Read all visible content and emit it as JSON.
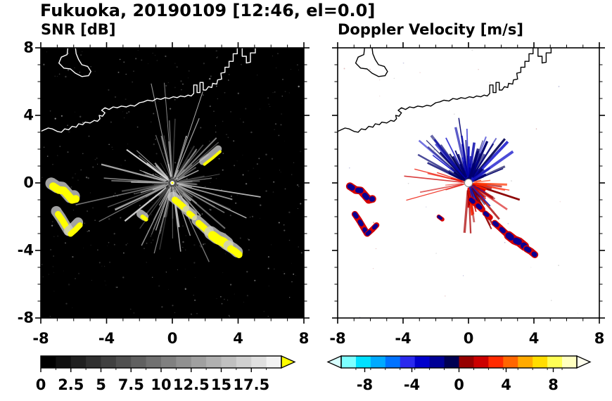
{
  "chart_data": {
    "type": "heatmap",
    "title": "Fukuoka, 20190109 [12:46, el=0.0]",
    "xlim": [
      -8,
      8
    ],
    "ylim": [
      -8,
      8
    ],
    "x_tick_labels": [
      "-8",
      "-4",
      "0",
      "4",
      "8"
    ],
    "y_tick_labels": [
      "8",
      "4",
      "0",
      "-4",
      "-8"
    ],
    "radar_center": [
      0,
      0
    ],
    "panels": [
      {
        "id": "snr",
        "title": "SNR [dB]",
        "bg": "#000000",
        "coast": "#ffffff",
        "colorbar": {
          "units": "dB",
          "range": [
            0,
            20
          ],
          "tick_labels": [
            "0",
            "2.5",
            "5",
            "7.5",
            "10",
            "12.5",
            "15",
            "17.5"
          ],
          "tick_values": [
            0,
            2.5,
            5,
            7.5,
            10,
            12.5,
            15,
            17.5
          ],
          "segment_colors": [
            "#000000",
            "#101010",
            "#202020",
            "#303030",
            "#404040",
            "#505050",
            "#606060",
            "#707070",
            "#808080",
            "#909090",
            "#a0a0a0",
            "#b0b0b0",
            "#c0c0c0",
            "#d0d0d0",
            "#e0e0e0",
            "#f2f2f2"
          ],
          "over_arrow": "#ffff00"
        }
      },
      {
        "id": "doppler",
        "title": "Doppler Velocity [m/s]",
        "bg": "#ffffff",
        "coast": "#000000",
        "colorbar": {
          "units": "m/s",
          "range": [
            -10,
            10
          ],
          "tick_labels": [
            "-8",
            "-4",
            "0",
            "4",
            "8"
          ],
          "tick_values": [
            -8,
            -4,
            0,
            4,
            8
          ],
          "segment_colors": [
            "#7dffff",
            "#00e0ff",
            "#00aaff",
            "#0072ff",
            "#2a2aee",
            "#0000cc",
            "#000096",
            "#000052",
            "#960000",
            "#cc0000",
            "#ff2a00",
            "#ff6600",
            "#ffaa00",
            "#ffdd00",
            "#ffff55",
            "#ffffc0"
          ],
          "under_arrow": "#d8ffff",
          "over_arrow": "#ffffee"
        }
      }
    ],
    "coastline": [
      [
        [
          -8,
          3.05
        ],
        [
          -7.55,
          3.25
        ],
        [
          -7.3,
          3.2
        ],
        [
          -7.0,
          3.05
        ],
        [
          -6.75,
          3.0
        ],
        [
          -6.55,
          3.2
        ],
        [
          -6.3,
          3.15
        ],
        [
          -6.1,
          3.35
        ],
        [
          -5.85,
          3.3
        ],
        [
          -5.7,
          3.5
        ],
        [
          -5.45,
          3.45
        ],
        [
          -5.3,
          3.6
        ],
        [
          -5.0,
          3.55
        ],
        [
          -4.75,
          3.7
        ],
        [
          -4.55,
          3.65
        ],
        [
          -4.4,
          3.8
        ],
        [
          -4.45,
          4.0
        ],
        [
          -4.25,
          3.95
        ],
        [
          -4.1,
          4.15
        ],
        [
          -4.3,
          4.3
        ],
        [
          -4.1,
          4.45
        ],
        [
          -3.85,
          4.35
        ],
        [
          -3.6,
          4.5
        ],
        [
          -3.35,
          4.45
        ],
        [
          -3.1,
          4.55
        ],
        [
          -2.8,
          4.5
        ],
        [
          -2.55,
          4.6
        ],
        [
          -2.3,
          4.55
        ],
        [
          -2.0,
          4.75
        ],
        [
          -1.75,
          4.8
        ],
        [
          -1.5,
          4.9
        ],
        [
          -1.2,
          4.85
        ],
        [
          -0.95,
          5.0
        ],
        [
          -0.7,
          4.95
        ],
        [
          -0.45,
          5.05
        ],
        [
          -0.2,
          5.0
        ],
        [
          0.05,
          5.1
        ],
        [
          0.3,
          5.05
        ],
        [
          0.5,
          5.15
        ],
        [
          0.75,
          5.1
        ],
        [
          0.95,
          5.2
        ],
        [
          1.15,
          5.15
        ],
        [
          1.3,
          5.3
        ],
        [
          1.3,
          5.8
        ],
        [
          1.5,
          5.8
        ],
        [
          1.5,
          5.35
        ],
        [
          1.68,
          5.35
        ],
        [
          1.68,
          5.95
        ],
        [
          1.88,
          5.95
        ],
        [
          1.88,
          5.5
        ],
        [
          2.05,
          5.5
        ],
        [
          2.2,
          5.7
        ],
        [
          2.4,
          5.65
        ],
        [
          2.45,
          5.9
        ],
        [
          2.7,
          5.85
        ],
        [
          2.75,
          6.1
        ],
        [
          3.0,
          6.15
        ],
        [
          2.95,
          6.5
        ],
        [
          3.2,
          6.55
        ],
        [
          3.2,
          6.85
        ],
        [
          3.45,
          6.85
        ],
        [
          3.45,
          7.2
        ],
        [
          3.7,
          7.2
        ],
        [
          3.7,
          7.65
        ],
        [
          3.95,
          7.65
        ],
        [
          3.95,
          8.05
        ]
      ],
      [
        [
          4.25,
          8.05
        ],
        [
          4.25,
          7.5
        ],
        [
          4.5,
          7.5
        ],
        [
          4.5,
          7.1
        ],
        [
          4.75,
          7.15
        ],
        [
          4.75,
          7.7
        ],
        [
          5.05,
          7.7
        ],
        [
          5.05,
          8.05
        ]
      ],
      [
        [
          -6.35,
          8.05
        ],
        [
          -6.4,
          7.6
        ],
        [
          -6.75,
          7.45
        ],
        [
          -6.9,
          7.1
        ],
        [
          -6.6,
          6.8
        ],
        [
          -6.2,
          6.75
        ],
        [
          -5.9,
          6.5
        ],
        [
          -5.5,
          6.3
        ],
        [
          -5.1,
          6.35
        ],
        [
          -4.95,
          6.6
        ],
        [
          -5.15,
          6.9
        ],
        [
          -5.5,
          7.0
        ],
        [
          -5.7,
          7.3
        ],
        [
          -5.85,
          7.65
        ],
        [
          -5.9,
          8.05
        ]
      ]
    ],
    "echoes": {
      "speckle": [
        {
          "count": 380,
          "max_r": 0.9,
          "seed": 7,
          "colors": [
            "#4a4a4a",
            "#6a6a6a",
            "#8a8a8a",
            "#b0b0b0"
          ]
        },
        {
          "count": 40,
          "max_r": 0.7,
          "seed": 11,
          "colors": [
            "#bbbbbb",
            "#cc8888",
            "#8888bb"
          ]
        }
      ],
      "fans": [
        [
          {
            "count": 95,
            "a": [
              0,
              360
            ],
            "len": [
              20,
              105
            ],
            "w": [
              0.7,
              2.4
            ],
            "seed": 3,
            "colors": [
              "#4d4d4d",
              "#6e6e6e",
              "#909090",
              "#b4b4b4",
              "#d8d8d8"
            ]
          },
          {
            "count": 16,
            "a": [
              0,
              360
            ],
            "len": [
              85,
              150
            ],
            "w": [
              0.8,
              1.8
            ],
            "seed": 9,
            "colors": [
              "#8a8a8a",
              "#b0b0b0",
              "#d0d0d0"
            ]
          }
        ],
        [
          {
            "count": 70,
            "a": [
              20,
              160
            ],
            "len": [
              18,
              95
            ],
            "w": [
              1.2,
              4.0
            ],
            "seed": 5,
            "colors": [
              "#00006e",
              "#0000aa",
              "#1616cc",
              "#000052"
            ]
          },
          {
            "count": 50,
            "a": [
              265,
              355
            ],
            "len": [
              15,
              78
            ],
            "w": [
              1.2,
              3.4
            ],
            "seed": 6,
            "colors": [
              "#aa0000",
              "#d40000",
              "#ff2200",
              "#8c0000"
            ]
          },
          {
            "count": 9,
            "a": [
              160,
              205
            ],
            "len": [
              25,
              92
            ],
            "w": [
              1.0,
              2.2
            ],
            "seed": 8,
            "colors": [
              "#cc0000",
              "#ee1100"
            ]
          },
          {
            "count": 8,
            "a": [
              -18,
              14
            ],
            "len": [
              15,
              60
            ],
            "w": [
              1.0,
              2.4
            ],
            "seed": 10,
            "colors": [
              "#d40000",
              "#ff3300"
            ]
          },
          {
            "count": 10,
            "a": [
              275,
              330
            ],
            "len": [
              22,
              65
            ],
            "w": [
              1.0,
              2.0
            ],
            "seed": 12,
            "colors": [
              "#000080",
              "#2222bb"
            ]
          }
        ]
      ],
      "blobs": [
        {
          "pts": [
            [
              -7.25,
              -0.2
            ],
            [
              -6.9,
              -0.42
            ],
            [
              -6.6,
              -0.45
            ],
            [
              -6.35,
              -0.72
            ],
            [
              -6.1,
              -1.0
            ],
            [
              -5.88,
              -0.95
            ]
          ],
          "w": 11
        },
        {
          "pts": [
            [
              -6.95,
              -1.85
            ],
            [
              -6.7,
              -2.2
            ],
            [
              -6.45,
              -2.6
            ],
            [
              -6.2,
              -3.0
            ]
          ],
          "w": 9
        },
        {
          "pts": [
            [
              -6.18,
              -3.02
            ],
            [
              -5.9,
              -2.78
            ],
            [
              -5.62,
              -2.5
            ]
          ],
          "w": 8
        },
        {
          "pts": [
            [
              0.15,
              -1.0
            ],
            [
              0.5,
              -1.28
            ],
            [
              0.82,
              -1.55
            ]
          ],
          "w": 9
        },
        {
          "pts": [
            [
              1.02,
              -1.8
            ],
            [
              1.32,
              -2.05
            ]
          ],
          "w": 8
        },
        {
          "pts": [
            [
              1.6,
              -2.38
            ],
            [
              1.95,
              -2.68
            ],
            [
              2.3,
              -3.0
            ]
          ],
          "w": 9
        },
        {
          "pts": [
            [
              2.45,
              -3.12
            ],
            [
              2.8,
              -3.38
            ],
            [
              3.1,
              -3.5
            ],
            [
              3.42,
              -3.75
            ]
          ],
          "w": 13
        },
        {
          "pts": [
            [
              3.55,
              -3.9
            ],
            [
              3.82,
              -4.06
            ],
            [
              4.05,
              -4.25
            ]
          ],
          "w": 10
        },
        {
          "pts": [
            [
              -1.82,
              -2.0
            ],
            [
              -1.6,
              -2.16
            ]
          ],
          "w": 6
        },
        {
          "pts": [
            [
              1.95,
              1.1
            ],
            [
              2.42,
              1.45
            ],
            [
              2.9,
              1.85
            ]
          ],
          "w": 4,
          "only": 0
        }
      ]
    }
  }
}
